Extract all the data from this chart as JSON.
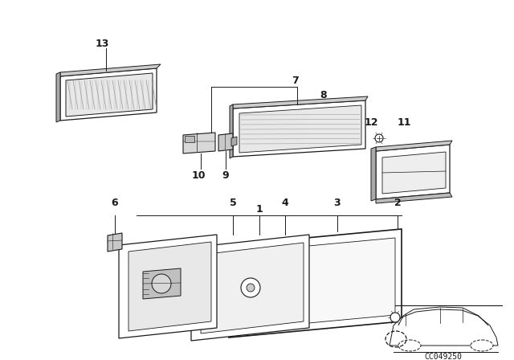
{
  "bg_color": "#ffffff",
  "line_color": "#1a1a1a",
  "part_number": "CC049250",
  "fig_width": 6.4,
  "fig_height": 4.48,
  "dpi": 100
}
